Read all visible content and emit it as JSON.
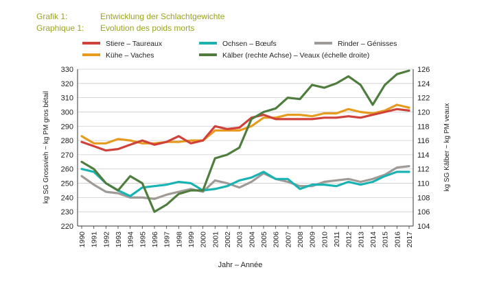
{
  "header": {
    "label_de": "Grafik 1:",
    "title_de": "Entwicklung der Schlachtgewichte",
    "label_fr": "Graphique 1:",
    "title_fr": "Evolution des poids morts"
  },
  "colors": {
    "stiere": "#d0413a",
    "ochsen": "#1ab3b3",
    "rinder": "#a09a96",
    "kuehe": "#e69b1f",
    "kaelber": "#4f7d3d",
    "grid": "#cccccc",
    "title": "#9aa31f"
  },
  "chart_data": {
    "type": "line",
    "title": "Entwicklung der Schlachtgewichte / Evolution des poids morts",
    "xlabel": "Jahr – Année",
    "ylabel_left": "kg SG Grossvieh ~ kg PM gros bétail",
    "ylabel_right": "kg SG Kälber ~ kg PM veaux",
    "ylim_left": [
      220,
      330
    ],
    "ylim_right": [
      104,
      126
    ],
    "yticks_left": [
      220,
      230,
      240,
      250,
      260,
      270,
      280,
      290,
      300,
      310,
      320,
      330
    ],
    "yticks_right": [
      104,
      106,
      108,
      110,
      112,
      114,
      116,
      118,
      120,
      122,
      124,
      126
    ],
    "grid": true,
    "categories": [
      "1990",
      "1991",
      "1992",
      "1993",
      "1994",
      "1995",
      "1996",
      "1997",
      "1998",
      "1999",
      "2000",
      "2001",
      "2002",
      "2003",
      "2004",
      "2005",
      "2006",
      "2007",
      "2008",
      "2009",
      "2010",
      "2011",
      "2012",
      "2013",
      "2014",
      "2015",
      "2016",
      "2017"
    ],
    "series": [
      {
        "key": "stiere",
        "name": "Stiere – Taureaux",
        "axis": "left",
        "values": [
          279,
          276,
          273,
          274,
          277,
          280,
          277,
          279,
          283,
          278,
          280,
          290,
          288,
          289,
          296,
          298,
          295,
          295,
          295,
          295,
          296,
          296,
          297,
          296,
          298,
          300,
          302,
          301
        ]
      },
      {
        "key": "ochsen",
        "name": "Ochsen – Bœufs",
        "axis": "left",
        "values": [
          260,
          258,
          250,
          245,
          241,
          247,
          248,
          249,
          251,
          250,
          245,
          246,
          248,
          252,
          254,
          258,
          253,
          253,
          246,
          249,
          249,
          248,
          251,
          249,
          251,
          255,
          258,
          258
        ]
      },
      {
        "key": "rinder",
        "name": "Rinder – Génisses",
        "axis": "left",
        "values": [
          255,
          249,
          244,
          243,
          240,
          240,
          239,
          242,
          244,
          246,
          244,
          252,
          250,
          247,
          251,
          257,
          253,
          251,
          248,
          248,
          251,
          252,
          253,
          251,
          253,
          256,
          261,
          262
        ]
      },
      {
        "key": "kuehe",
        "name": "Kühe – Vaches",
        "axis": "left",
        "values": [
          283,
          278,
          278,
          281,
          280,
          278,
          278,
          279,
          279,
          280,
          280,
          287,
          287,
          287,
          290,
          296,
          296,
          298,
          298,
          297,
          299,
          299,
          302,
          300,
          299,
          301,
          305,
          303
        ]
      },
      {
        "key": "kaelber",
        "name": "Kälber (rechte Achse) – Veaux (échelle droite)",
        "axis": "right",
        "values": [
          113,
          112,
          110,
          109,
          111,
          110,
          106,
          107,
          108.5,
          109,
          109,
          113.5,
          114,
          115,
          119,
          120,
          120.5,
          122,
          121.8,
          123.8,
          123.4,
          124,
          125,
          123.8,
          121,
          123.8,
          125.3,
          125.8
        ]
      }
    ]
  }
}
